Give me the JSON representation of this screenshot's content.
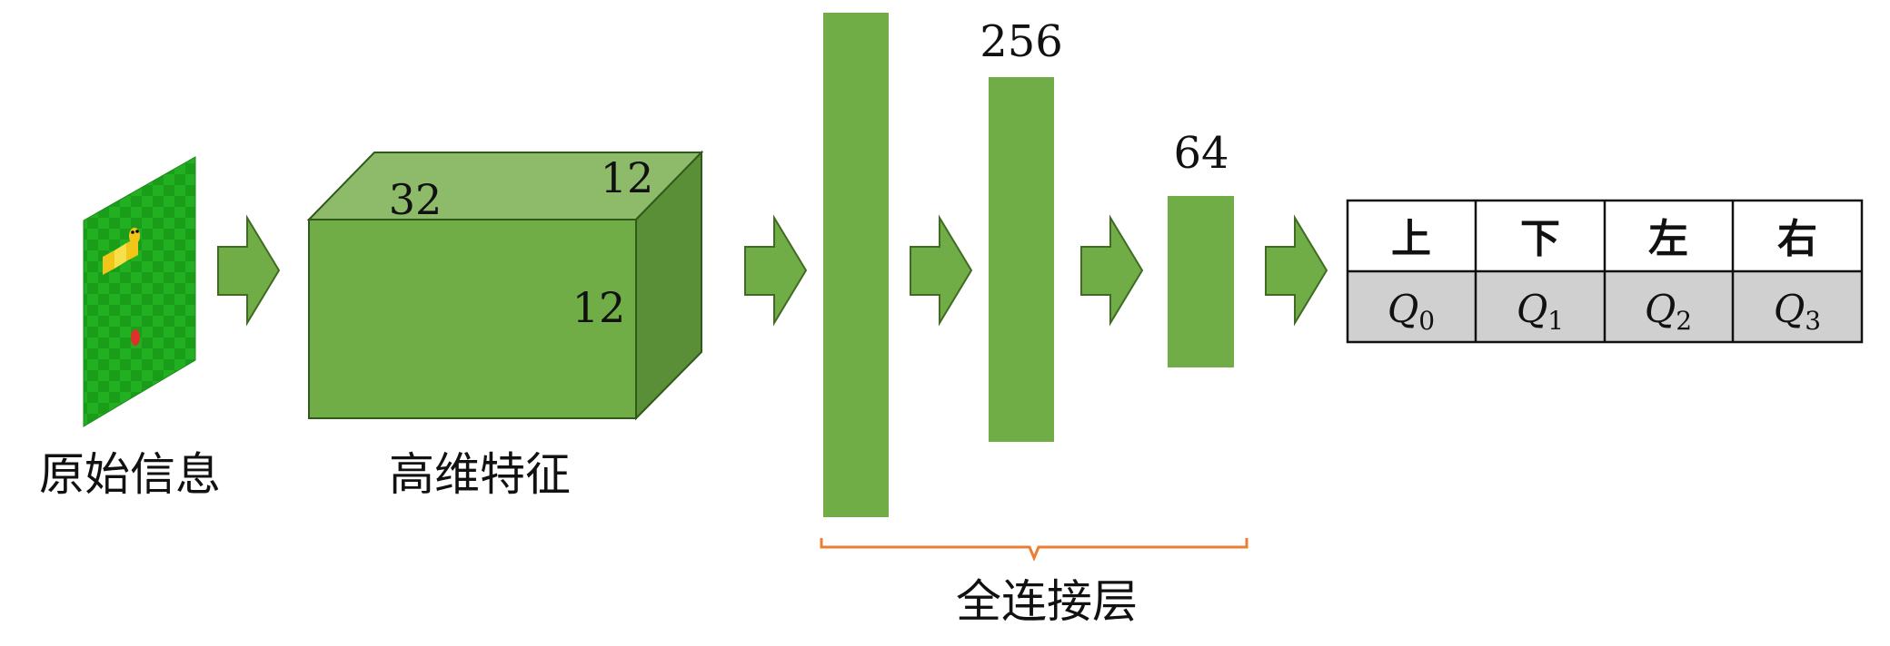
{
  "labels": {
    "raw_info": "原始信息",
    "high_dim": "高维特征",
    "fc_layers": "全连接层"
  },
  "cube_dims": {
    "width": "32",
    "depth": "12",
    "height": "12"
  },
  "fc_sizes": {
    "fc2": "256",
    "fc3": "64"
  },
  "output_table": {
    "actions": [
      "上",
      "下",
      "左",
      "右"
    ],
    "q_values": [
      {
        "symbol": "Q",
        "sub": "0"
      },
      {
        "symbol": "Q",
        "sub": "1"
      },
      {
        "symbol": "Q",
        "sub": "2"
      },
      {
        "symbol": "Q",
        "sub": "3"
      }
    ]
  },
  "colors": {
    "green": "#70AD47",
    "green_dark": "#3F6B22",
    "green_top": "#8DBB6A",
    "green_side": "#5A8F38",
    "brace": "#ED7D31",
    "table_header_bg": "#ffffff",
    "table_value_bg": "#D0D0D0"
  }
}
